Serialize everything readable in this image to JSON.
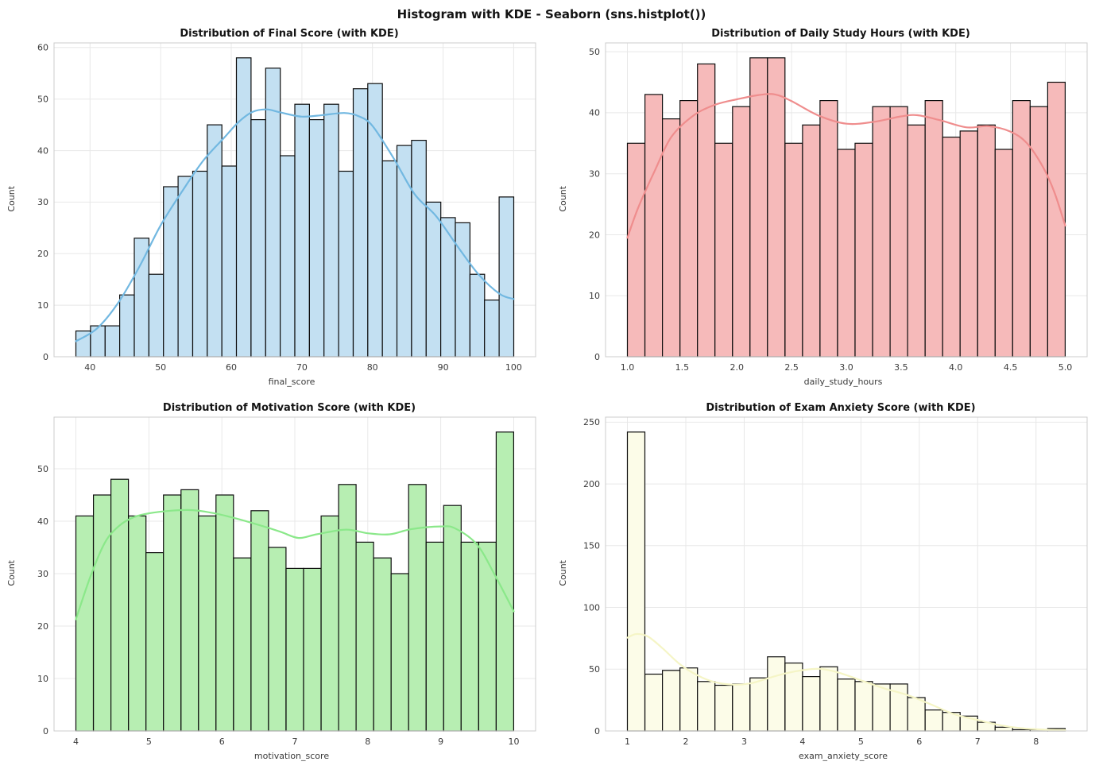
{
  "header": {
    "title": "Histogram with KDE - Seaborn (sns.histplot())"
  },
  "chart_data": [
    {
      "type": "histogram-kde",
      "id": "final-score",
      "title": "Distribution of Final Score (with KDE)",
      "xlabel": "final_score",
      "ylabel": "Count",
      "colors": {
        "bar_fill": "#c3e0f2",
        "bar_edge": "#0d0d0d",
        "kde": "#72b8e1"
      },
      "bin_start": 38,
      "bin_width": 2.0667,
      "values": [
        5,
        6,
        6,
        12,
        23,
        16,
        33,
        35,
        36,
        45,
        37,
        58,
        46,
        56,
        39,
        49,
        46,
        49,
        36,
        52,
        53,
        38,
        41,
        42,
        30,
        27,
        26,
        16,
        11,
        31
      ],
      "x_ticks": [
        40,
        50,
        60,
        70,
        80,
        90,
        100
      ],
      "x_tick_labels": [
        "40",
        "50",
        "60",
        "70",
        "80",
        "90",
        "100"
      ],
      "y_ticks": [
        0,
        10,
        20,
        30,
        40,
        50,
        60
      ],
      "y_tick_labels": [
        "0",
        "10",
        "20",
        "30",
        "40",
        "50",
        "60"
      ],
      "ylim": [
        0,
        61
      ],
      "grid": true,
      "kde": {
        "x": [
          38,
          41,
          44,
          47,
          50,
          53,
          56,
          59,
          61,
          63,
          65,
          67,
          70,
          73,
          76,
          78,
          80,
          83,
          86,
          89,
          92,
          95,
          98,
          100
        ],
        "y": [
          3,
          5.5,
          10.5,
          17.5,
          25.5,
          32,
          38,
          42.5,
          45.5,
          47.5,
          48,
          47.4,
          46.6,
          46.9,
          47.3,
          46.7,
          44.8,
          38.5,
          31.5,
          27.3,
          21.5,
          16,
          12.2,
          11.2
        ]
      }
    },
    {
      "type": "histogram-kde",
      "id": "daily-study-hours",
      "title": "Distribution of Daily Study Hours (with KDE)",
      "xlabel": "daily_study_hours",
      "ylabel": "Count",
      "colors": {
        "bar_fill": "#f6baba",
        "bar_edge": "#0d0d0d",
        "kde": "#ef8d8d"
      },
      "bin_start": 1.0,
      "bin_width": 0.16,
      "values": [
        35,
        43,
        39,
        42,
        48,
        35,
        41,
        49,
        49,
        35,
        38,
        42,
        34,
        35,
        41,
        41,
        38,
        42,
        36,
        37,
        38,
        34,
        42,
        41,
        45
      ],
      "x_ticks": [
        1.0,
        1.5,
        2.0,
        2.5,
        3.0,
        3.5,
        4.0,
        4.5,
        5.0
      ],
      "x_tick_labels": [
        "1.0",
        "1.5",
        "2.0",
        "2.5",
        "3.0",
        "3.5",
        "4.0",
        "4.5",
        "5.0"
      ],
      "y_ticks": [
        0,
        10,
        20,
        30,
        40,
        50
      ],
      "y_tick_labels": [
        "0",
        "10",
        "20",
        "30",
        "40",
        "50"
      ],
      "ylim": [
        0,
        51.5
      ],
      "grid": true,
      "kde": {
        "x": [
          1.0,
          1.1,
          1.25,
          1.4,
          1.6,
          1.8,
          2.0,
          2.2,
          2.35,
          2.5,
          2.75,
          3.0,
          3.25,
          3.5,
          3.65,
          3.85,
          4.1,
          4.3,
          4.5,
          4.65,
          4.8,
          4.9,
          5.0
        ],
        "y": [
          19.5,
          24.5,
          30.5,
          36,
          39.5,
          41.3,
          42.2,
          42.9,
          43,
          41.9,
          39.5,
          38.2,
          38.5,
          39.4,
          39.6,
          38.8,
          37.6,
          37.8,
          36.9,
          35,
          31,
          27,
          21.5
        ]
      }
    },
    {
      "type": "histogram-kde",
      "id": "motivation-score",
      "title": "Distribution of Motivation Score (with KDE)",
      "xlabel": "motivation_score",
      "ylabel": "Count",
      "colors": {
        "bar_fill": "#b7eeb2",
        "bar_edge": "#0d0d0d",
        "kde": "#8be88a"
      },
      "bin_start": 4.0,
      "bin_width": 0.24,
      "values": [
        41,
        45,
        48,
        41,
        34,
        45,
        46,
        41,
        45,
        33,
        42,
        35,
        31,
        31,
        41,
        47,
        36,
        33,
        30,
        47,
        36,
        43,
        36,
        36,
        57
      ],
      "x_ticks": [
        4,
        5,
        6,
        7,
        8,
        9,
        10
      ],
      "x_tick_labels": [
        "4",
        "5",
        "6",
        "7",
        "8",
        "9",
        "10"
      ],
      "y_ticks": [
        0,
        10,
        20,
        30,
        40,
        50
      ],
      "y_tick_labels": [
        "0",
        "10",
        "20",
        "30",
        "40",
        "50"
      ],
      "ylim": [
        0,
        59.9
      ],
      "grid": true,
      "kde": {
        "x": [
          4.0,
          4.2,
          4.4,
          4.6,
          4.8,
          5.0,
          5.3,
          5.6,
          5.9,
          6.2,
          6.5,
          6.8,
          7.05,
          7.3,
          7.7,
          8.0,
          8.3,
          8.6,
          9.0,
          9.2,
          9.5,
          9.75,
          10.0
        ],
        "y": [
          21.3,
          29.5,
          36,
          39.2,
          40.8,
          41.5,
          42,
          42.1,
          41.5,
          40.5,
          39.3,
          38,
          36.8,
          37.5,
          38.4,
          37.7,
          37.5,
          38.5,
          39,
          38.6,
          35.5,
          29.5,
          22.8
        ]
      }
    },
    {
      "type": "histogram-kde",
      "id": "exam-anxiety-score",
      "title": "Distribution of Exam Anxiety Score (with KDE)",
      "xlabel": "exam_anxiety_score",
      "ylabel": "Count",
      "colors": {
        "bar_fill": "#fcfce8",
        "bar_edge": "#0d0d0d",
        "kde": "#f5f5c6"
      },
      "bin_start": 1.0,
      "bin_width": 0.3,
      "values": [
        242,
        46,
        49,
        51,
        40,
        37,
        38,
        43,
        60,
        55,
        44,
        52,
        42,
        40,
        38,
        38,
        27,
        17,
        15,
        12,
        7,
        3,
        1,
        1,
        2
      ],
      "x_ticks": [
        1,
        2,
        3,
        4,
        5,
        6,
        7,
        8
      ],
      "x_tick_labels": [
        "1",
        "2",
        "3",
        "4",
        "5",
        "6",
        "7",
        "8"
      ],
      "y_ticks": [
        0,
        50,
        100,
        150,
        200,
        250
      ],
      "y_tick_labels": [
        "0",
        "50",
        "100",
        "150",
        "200",
        "250"
      ],
      "ylim": [
        0,
        254
      ],
      "grid": true,
      "kde": {
        "x": [
          1.0,
          1.15,
          1.35,
          1.6,
          1.9,
          2.2,
          2.5,
          2.8,
          3.1,
          3.4,
          3.7,
          4.0,
          4.3,
          4.6,
          5.0,
          5.4,
          5.8,
          6.2,
          6.6,
          7.0,
          7.4,
          7.8,
          8.2,
          8.5
        ],
        "y": [
          75.5,
          78.5,
          76.5,
          67,
          54,
          45,
          39.5,
          37.5,
          38.5,
          42.5,
          46.5,
          49.2,
          50.3,
          47.5,
          41,
          34.5,
          29,
          21.5,
          13.5,
          8.9,
          4.5,
          2,
          1,
          0.8
        ]
      }
    }
  ]
}
